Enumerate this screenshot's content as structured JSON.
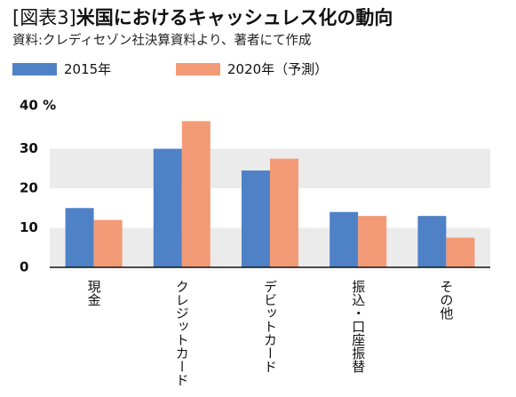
{
  "header": {
    "figure_label": "[図表3]",
    "title": "米国におけるキャッシュレス化の動向",
    "source_note": "資料:クレディセゾン社決算資料より、著者にて作成"
  },
  "chart_data": {
    "type": "bar",
    "categories": [
      "現金",
      "クレジットカード",
      "デビットカード",
      "振込・口座振替",
      "その他"
    ],
    "series": [
      {
        "name": "2015年",
        "values": [
          15,
          30,
          24.5,
          14,
          13
        ]
      },
      {
        "name": "2020年（予測）",
        "values": [
          12,
          37,
          27.5,
          13,
          7.5
        ]
      }
    ],
    "ylim": [
      0,
      40
    ],
    "yticks": [
      "0",
      "10",
      "20",
      "30",
      "40 %"
    ],
    "ytick_values": [
      0,
      10,
      20,
      30,
      40
    ],
    "grid": "alternating bands",
    "legend_position": "top-left"
  },
  "colors": {
    "series_2015": "#4f81c7",
    "series_2020": "#f29b76",
    "band": "#ebebeb",
    "axis": "#111111"
  }
}
